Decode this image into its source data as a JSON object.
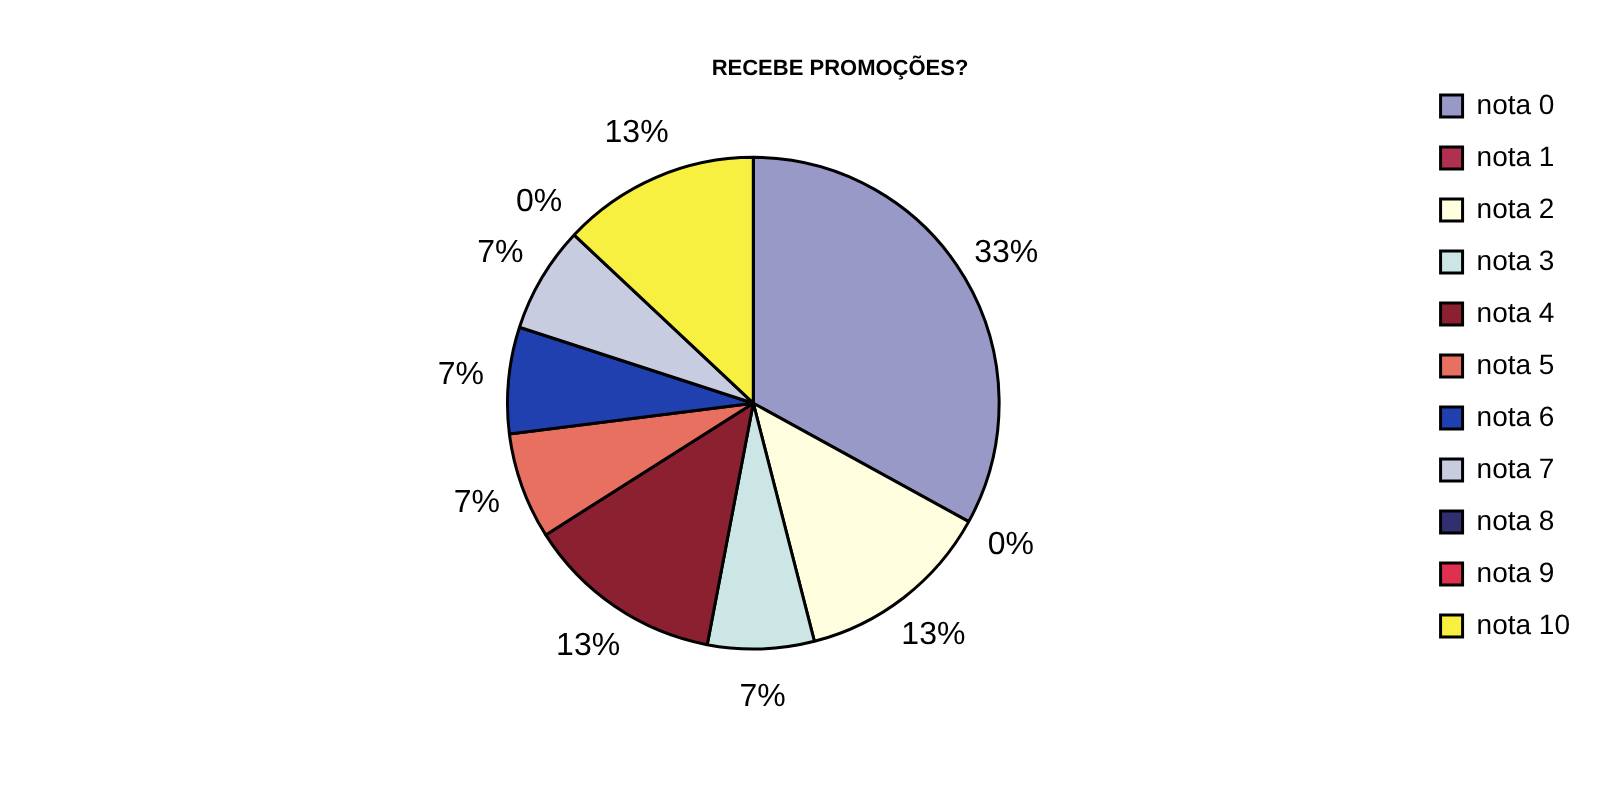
{
  "chart_data": {
    "type": "pie",
    "title": "RECEBE PROMOÇÕES?",
    "categories": [
      "nota 0",
      "nota 1",
      "nota 2",
      "nota 3",
      "nota 4",
      "nota 5",
      "nota 6",
      "nota 7",
      "nota 8",
      "nota 9",
      "nota 10"
    ],
    "values": [
      33,
      0,
      13,
      7,
      13,
      7,
      7,
      7,
      0,
      0,
      13
    ],
    "value_labels": [
      "33%",
      "0%",
      "13%",
      "7%",
      "13%",
      "7%",
      "7%",
      "7%",
      "0%",
      null,
      "13%"
    ],
    "colors": [
      "#9999c8",
      "#b03050",
      "#ffffe0",
      "#cce6e6",
      "#8a2030",
      "#e87060",
      "#2040b0",
      "#c8cce0",
      "#303070",
      "#e03050",
      "#f8f040"
    ],
    "legend": "right"
  }
}
